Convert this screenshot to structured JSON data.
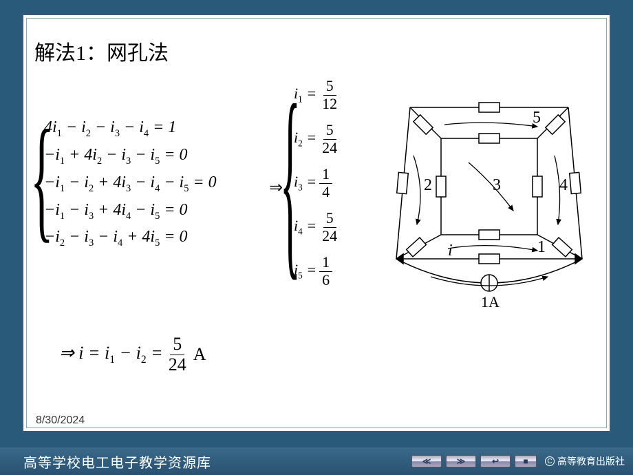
{
  "title": "解法1：网孔法",
  "date": "8/30/2024",
  "equations": {
    "rows": [
      "4i<sub>1</sub> − i<sub>2</sub> − i<sub>3</sub> − i<sub>4</sub> = 1",
      "−i<sub>1</sub> + 4i<sub>2</sub> − i<sub>3</sub> − i<sub>5</sub> = 0",
      "−i<sub>1</sub> − i<sub>2</sub> + 4i<sub>3</sub> − i<sub>4</sub> − i<sub>5</sub> = 0",
      "−i<sub>1</sub> − i<sub>3</sub> + 4i<sub>4</sub> − i<sub>5</sub> = 0",
      "−i<sub>2</sub> − i<sub>3</sub> − i<sub>4</sub> + 4i<sub>5</sub> = 0"
    ]
  },
  "solutions": [
    {
      "var": "i<sub>1</sub>",
      "num": "5",
      "den": "12"
    },
    {
      "var": "i<sub>2</sub>",
      "num": "5",
      "den": "24"
    },
    {
      "var": "i<sub>3</sub>",
      "num": "1",
      "den": "4"
    },
    {
      "var": "i<sub>4</sub>",
      "num": "5",
      "den": "24"
    },
    {
      "var": "i<sub>5</sub>",
      "num": "1",
      "den": "6"
    }
  ],
  "arrow": "⇒",
  "final": {
    "prefix": "⇒ i = i<sub>1</sub> − i<sub>2</sub> =",
    "num": "5",
    "den": "24",
    "unit": "A"
  },
  "circuit": {
    "mesh_labels": [
      "1",
      "2",
      "3",
      "4",
      "5"
    ],
    "current_label": "i",
    "source_label": "1A",
    "stroke": "#000000",
    "fontsize": 24
  },
  "footer": {
    "title": "高等学校电工电子教学资源库",
    "publisher": "高等教育出版社",
    "buttons": {
      "first": "≪",
      "next": "≫",
      "back": "↩",
      "stop": "■"
    }
  },
  "colors": {
    "page_bg": "#2a5a7a",
    "frame_border": "#3a5a7a",
    "slide_bg": "#ffffff",
    "text": "#000000"
  }
}
